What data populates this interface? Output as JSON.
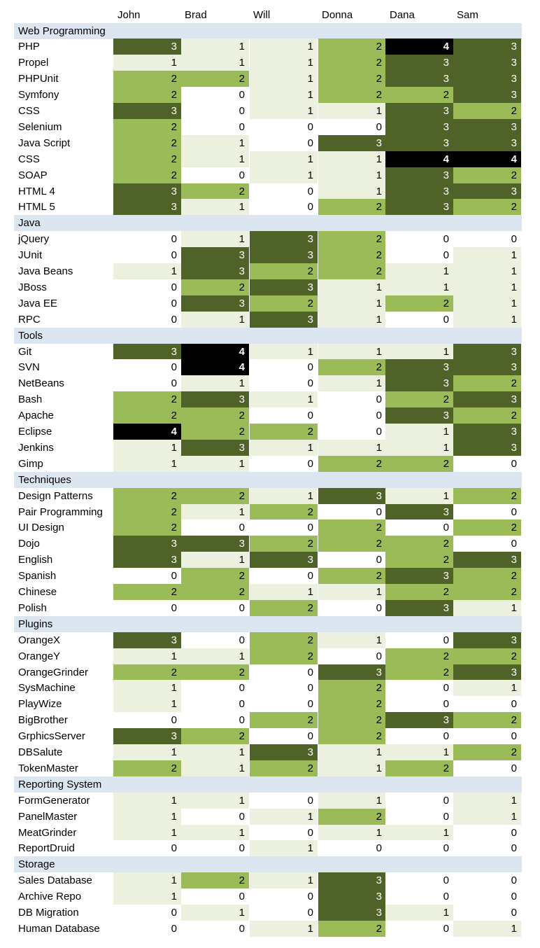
{
  "chart_data": {
    "type": "heatmap",
    "columns": [
      "John",
      "Brad",
      "Will",
      "Donna",
      "Dana",
      "Sam"
    ],
    "color_scale": {
      "0": "#ffffff",
      "1": "#ebf1de",
      "2": "#9bbb59",
      "3": "#4f6228",
      "4": "#000000"
    },
    "groups": [
      {
        "name": "Web Programming",
        "rows": [
          {
            "label": "PHP",
            "values": [
              3,
              1,
              1,
              2,
              4,
              3
            ]
          },
          {
            "label": "Propel",
            "values": [
              1,
              1,
              1,
              2,
              3,
              3
            ]
          },
          {
            "label": "PHPUnit",
            "values": [
              2,
              2,
              1,
              2,
              3,
              3
            ]
          },
          {
            "label": "Symfony",
            "values": [
              2,
              0,
              1,
              2,
              2,
              3
            ]
          },
          {
            "label": "CSS",
            "values": [
              3,
              0,
              1,
              1,
              3,
              2
            ]
          },
          {
            "label": "Selenium",
            "values": [
              2,
              0,
              0,
              0,
              3,
              3
            ]
          },
          {
            "label": "Java Script",
            "values": [
              2,
              1,
              0,
              3,
              3,
              3
            ]
          },
          {
            "label": "CSS",
            "values": [
              2,
              1,
              1,
              1,
              4,
              4
            ]
          },
          {
            "label": "SOAP",
            "values": [
              2,
              0,
              1,
              1,
              3,
              2
            ]
          },
          {
            "label": "HTML 4",
            "values": [
              3,
              2,
              0,
              1,
              3,
              3
            ]
          },
          {
            "label": "HTML 5",
            "values": [
              3,
              1,
              0,
              2,
              3,
              2
            ]
          }
        ]
      },
      {
        "name": "Java",
        "rows": [
          {
            "label": "jQuery",
            "values": [
              0,
              1,
              3,
              2,
              0,
              0
            ]
          },
          {
            "label": "JUnit",
            "values": [
              0,
              3,
              3,
              2,
              0,
              1
            ]
          },
          {
            "label": "Java Beans",
            "values": [
              1,
              3,
              2,
              2,
              1,
              1
            ]
          },
          {
            "label": "JBoss",
            "values": [
              0,
              2,
              3,
              1,
              1,
              1
            ]
          },
          {
            "label": "Java EE",
            "values": [
              0,
              3,
              2,
              1,
              2,
              1
            ]
          },
          {
            "label": "RPC",
            "values": [
              0,
              1,
              3,
              1,
              0,
              1
            ]
          }
        ]
      },
      {
        "name": "Tools",
        "rows": [
          {
            "label": "Git",
            "values": [
              3,
              4,
              1,
              1,
              1,
              3
            ]
          },
          {
            "label": "SVN",
            "values": [
              0,
              4,
              0,
              2,
              3,
              3
            ]
          },
          {
            "label": "NetBeans",
            "values": [
              0,
              1,
              0,
              1,
              3,
              2
            ]
          },
          {
            "label": "Bash",
            "values": [
              2,
              3,
              1,
              0,
              2,
              3
            ]
          },
          {
            "label": "Apache",
            "values": [
              2,
              2,
              0,
              0,
              3,
              2
            ]
          },
          {
            "label": "Eclipse",
            "values": [
              4,
              2,
              2,
              0,
              1,
              3
            ]
          },
          {
            "label": "Jenkins",
            "values": [
              1,
              3,
              1,
              1,
              1,
              3
            ]
          },
          {
            "label": "Gimp",
            "values": [
              1,
              1,
              0,
              2,
              2,
              0
            ]
          }
        ]
      },
      {
        "name": "Techniques",
        "rows": [
          {
            "label": "Design Patterns",
            "values": [
              2,
              2,
              1,
              3,
              1,
              2
            ]
          },
          {
            "label": "Pair Programming",
            "values": [
              2,
              1,
              2,
              0,
              3,
              0
            ]
          },
          {
            "label": "UI Design",
            "values": [
              2,
              0,
              0,
              2,
              0,
              2
            ]
          },
          {
            "label": "Dojo",
            "values": [
              3,
              3,
              2,
              2,
              2,
              0
            ]
          },
          {
            "label": "English",
            "values": [
              3,
              1,
              3,
              0,
              2,
              3
            ]
          },
          {
            "label": "Spanish",
            "values": [
              0,
              2,
              0,
              2,
              3,
              2
            ]
          },
          {
            "label": "Chinese",
            "values": [
              2,
              2,
              1,
              1,
              2,
              2
            ]
          },
          {
            "label": "Polish",
            "values": [
              0,
              0,
              2,
              0,
              3,
              1
            ]
          }
        ]
      },
      {
        "name": "Plugins",
        "rows": [
          {
            "label": "OrangeX",
            "values": [
              3,
              0,
              2,
              1,
              0,
              3
            ]
          },
          {
            "label": "OrangeY",
            "values": [
              1,
              1,
              2,
              0,
              2,
              2
            ]
          },
          {
            "label": "OrangeGrinder",
            "values": [
              2,
              2,
              0,
              3,
              2,
              3
            ]
          },
          {
            "label": "SysMachine",
            "values": [
              1,
              0,
              0,
              2,
              0,
              1
            ]
          },
          {
            "label": "PlayWize",
            "values": [
              1,
              0,
              0,
              2,
              0,
              0
            ]
          },
          {
            "label": "BigBrother",
            "values": [
              0,
              0,
              2,
              2,
              3,
              2
            ]
          },
          {
            "label": "GrphicsServer",
            "values": [
              3,
              2,
              0,
              2,
              0,
              0
            ]
          },
          {
            "label": "DBSalute",
            "values": [
              1,
              1,
              3,
              1,
              1,
              2
            ]
          },
          {
            "label": "TokenMaster",
            "values": [
              2,
              1,
              2,
              1,
              2,
              0
            ]
          }
        ]
      },
      {
        "name": "Reporting System",
        "rows": [
          {
            "label": "FormGenerator",
            "values": [
              1,
              1,
              0,
              1,
              0,
              1
            ]
          },
          {
            "label": "PanelMaster",
            "values": [
              1,
              0,
              1,
              2,
              0,
              1
            ]
          },
          {
            "label": "MeatGrinder",
            "values": [
              1,
              1,
              0,
              1,
              1,
              0
            ]
          },
          {
            "label": "ReportDruid",
            "values": [
              0,
              0,
              1,
              0,
              0,
              0
            ]
          }
        ]
      },
      {
        "name": "Storage",
        "rows": [
          {
            "label": "Sales Database",
            "values": [
              1,
              2,
              1,
              3,
              0,
              0
            ]
          },
          {
            "label": "Archive Repo",
            "values": [
              1,
              0,
              0,
              3,
              0,
              0
            ]
          },
          {
            "label": "DB Migration",
            "values": [
              0,
              1,
              0,
              3,
              1,
              0
            ]
          },
          {
            "label": "Human Database",
            "values": [
              0,
              0,
              1,
              2,
              0,
              1
            ]
          }
        ]
      }
    ]
  }
}
